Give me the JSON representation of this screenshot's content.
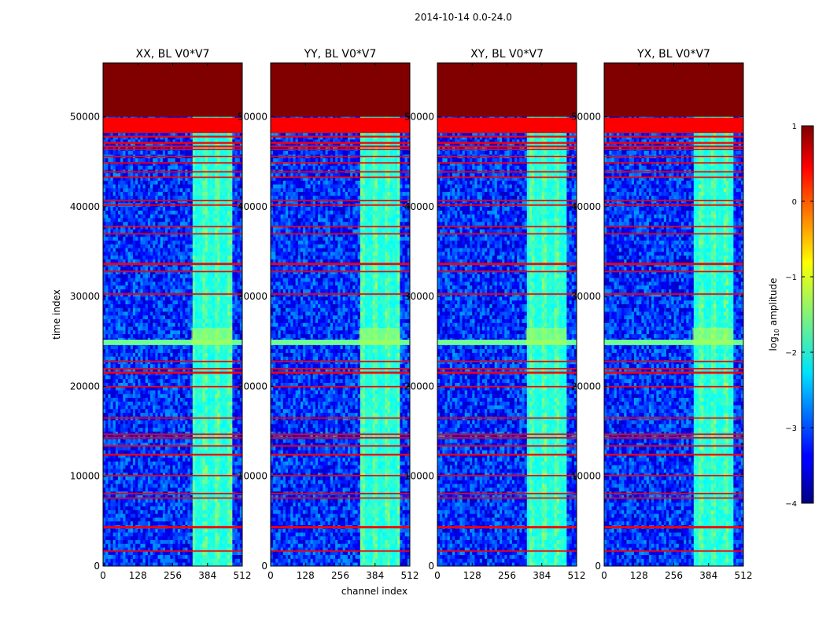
{
  "chart_data": {
    "type": "heatmap",
    "suptitle": "2014-10-14 0.0-24.0",
    "xlabel": "channel index",
    "ylabel": "time index",
    "xlim": [
      0,
      512
    ],
    "ylim": [
      0,
      56000
    ],
    "xticks": [
      0,
      128,
      256,
      384,
      512
    ],
    "xtick_labels": [
      "0",
      "128",
      "256",
      "384",
      "512"
    ],
    "yticks": [
      0,
      10000,
      20000,
      30000,
      40000,
      50000
    ],
    "ytick_labels": [
      "0",
      "10000",
      "20000",
      "30000",
      "40000",
      "50000"
    ],
    "colorbar": {
      "label_prefix": "log",
      "label_sub": "10",
      "label_suffix": " amplitude",
      "range": [
        -4,
        1
      ],
      "ticks": [
        1,
        0,
        -1,
        -2,
        -3,
        -4
      ],
      "tick_labels": [
        "1",
        "0",
        "−1",
        "−2",
        "−3",
        "−4"
      ],
      "colormap": "jet"
    },
    "panels": [
      {
        "title": "XX, BL V0*V7"
      },
      {
        "title": "YY, BL V0*V7"
      },
      {
        "title": "XY, BL V0*V7"
      },
      {
        "title": "YX, BL V0*V7"
      }
    ],
    "flagged_region": {
      "time_start": 50000,
      "time_end": 56000,
      "value": 1
    },
    "flag_bands": [
      {
        "time_start": 48200,
        "time_end": 49900,
        "value": 0.4
      },
      {
        "time_start": 47700,
        "time_end": 47900,
        "value": 0.4
      },
      {
        "time_start": 47000,
        "time_end": 47200,
        "value": 0.4
      },
      {
        "time_start": 46600,
        "time_end": 46800,
        "value": 0.4
      },
      {
        "time_start": 46300,
        "time_end": 46450,
        "value": 0.4
      },
      {
        "time_start": 45500,
        "time_end": 45650,
        "value": 0.4
      },
      {
        "time_start": 44800,
        "time_end": 44950,
        "value": 0.4
      },
      {
        "time_start": 43800,
        "time_end": 43950,
        "value": 0.4
      },
      {
        "time_start": 43200,
        "time_end": 43350,
        "value": 0.4
      },
      {
        "time_start": 40600,
        "time_end": 40750,
        "value": 0.4
      },
      {
        "time_start": 40100,
        "time_end": 40250,
        "value": 0.4
      },
      {
        "time_start": 37700,
        "time_end": 37850,
        "value": 0.4
      },
      {
        "time_start": 36900,
        "time_end": 37050,
        "value": 0.4
      },
      {
        "time_start": 33500,
        "time_end": 33750,
        "value": 0.4
      },
      {
        "time_start": 32700,
        "time_end": 32850,
        "value": 0.4
      },
      {
        "time_start": 30200,
        "time_end": 30350,
        "value": 0.4
      },
      {
        "time_start": 22700,
        "time_end": 22850,
        "value": 0.4
      },
      {
        "time_start": 21900,
        "time_end": 22050,
        "value": 0.4
      },
      {
        "time_start": 21400,
        "time_end": 21650,
        "value": 0.4
      },
      {
        "time_start": 19900,
        "time_end": 20050,
        "value": 0.4
      },
      {
        "time_start": 16400,
        "time_end": 16550,
        "value": 0.4
      },
      {
        "time_start": 14600,
        "time_end": 14750,
        "value": 0.4
      },
      {
        "time_start": 14200,
        "time_end": 14350,
        "value": 0.4
      },
      {
        "time_start": 13300,
        "time_end": 13450,
        "value": 0.4
      },
      {
        "time_start": 12300,
        "time_end": 12500,
        "value": 0.4
      },
      {
        "time_start": 10000,
        "time_end": 10150,
        "value": 0.4
      },
      {
        "time_start": 8000,
        "time_end": 8150,
        "value": 0.4
      },
      {
        "time_start": 7500,
        "time_end": 7650,
        "value": 0.4
      },
      {
        "time_start": 4200,
        "time_end": 4450,
        "value": 0.4
      },
      {
        "time_start": 1600,
        "time_end": 1750,
        "value": 0.4
      }
    ],
    "rfi_band": {
      "channel_start": 325,
      "channel_end": 475,
      "value_range": [
        -2.6,
        -1.3
      ]
    },
    "bright_row": {
      "time_start": 24600,
      "time_end": 25200,
      "value": -1.6
    },
    "background_range": [
      -3.7,
      -2.6
    ]
  }
}
